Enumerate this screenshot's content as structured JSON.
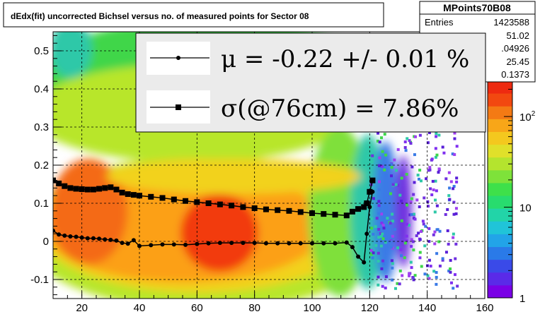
{
  "chart_data": {
    "type": "heatmap",
    "title": "dEdx(fit) uncorrected Bichsel versus no. of measured points for Sector 08",
    "xlim": [
      10,
      160
    ],
    "ylim": [
      -0.15,
      0.55
    ],
    "x_ticks": [
      "20",
      "40",
      "60",
      "80",
      "100",
      "120",
      "140",
      "160"
    ],
    "y_ticks": [
      "-0.1",
      "0",
      "0.1",
      "0.2",
      "0.3",
      "0.4",
      "0.5"
    ],
    "grid": true,
    "color_scale": "log",
    "palette_labels": [
      "1",
      "10",
      "10^2"
    ],
    "stats_box": {
      "title": "MPoints70B08",
      "rows": [
        {
          "label": "Entries",
          "value": "1423588"
        },
        {
          "label": "",
          "value": "51.02"
        },
        {
          "label": "",
          "value": ".04926"
        },
        {
          "label": "",
          "value": "25.45"
        },
        {
          "label": "",
          "value": "0.1373"
        }
      ]
    },
    "legend": [
      {
        "text": "μ  = -0.22 +/-  0.01 %",
        "marker": "circle"
      },
      {
        "text": "σ(@76cm) =  7.86%",
        "marker": "square"
      }
    ],
    "series": [
      {
        "marker": "circle",
        "x": [
          10,
          12,
          14,
          16,
          18,
          20,
          22,
          24,
          26,
          28,
          30,
          32,
          34,
          36,
          38,
          40,
          44,
          48,
          52,
          56,
          60,
          64,
          68,
          72,
          76,
          80,
          84,
          88,
          92,
          96,
          100,
          104,
          108,
          112,
          114,
          116,
          118,
          119,
          120,
          121
        ],
        "y": [
          0.028,
          0.018,
          0.015,
          0.013,
          0.012,
          0.01,
          0.008,
          0.008,
          0.007,
          0.005,
          0.004,
          0.002,
          -0.004,
          -0.006,
          0.003,
          -0.012,
          -0.01,
          -0.008,
          -0.008,
          -0.009,
          -0.007,
          -0.005,
          -0.004,
          -0.004,
          -0.004,
          -0.004,
          -0.005,
          -0.005,
          -0.005,
          -0.005,
          -0.005,
          -0.005,
          -0.005,
          -0.003,
          -0.015,
          -0.04,
          -0.055,
          0.02,
          0.09,
          0.13
        ]
      },
      {
        "marker": "square",
        "x": [
          10,
          12,
          14,
          16,
          18,
          20,
          22,
          24,
          26,
          28,
          30,
          32,
          34,
          36,
          38,
          40,
          44,
          48,
          52,
          56,
          60,
          64,
          68,
          72,
          76,
          80,
          84,
          88,
          92,
          96,
          100,
          104,
          108,
          112,
          114,
          116,
          118,
          119,
          120,
          121
        ],
        "y": [
          0.16,
          0.152,
          0.145,
          0.14,
          0.138,
          0.137,
          0.136,
          0.136,
          0.138,
          0.14,
          0.142,
          0.136,
          0.128,
          0.124,
          0.122,
          0.12,
          0.117,
          0.114,
          0.11,
          0.106,
          0.103,
          0.1,
          0.097,
          0.094,
          0.09,
          0.087,
          0.084,
          0.082,
          0.08,
          0.077,
          0.074,
          0.072,
          0.07,
          0.068,
          0.078,
          0.085,
          0.09,
          0.1,
          0.13,
          0.16
        ]
      }
    ]
  }
}
